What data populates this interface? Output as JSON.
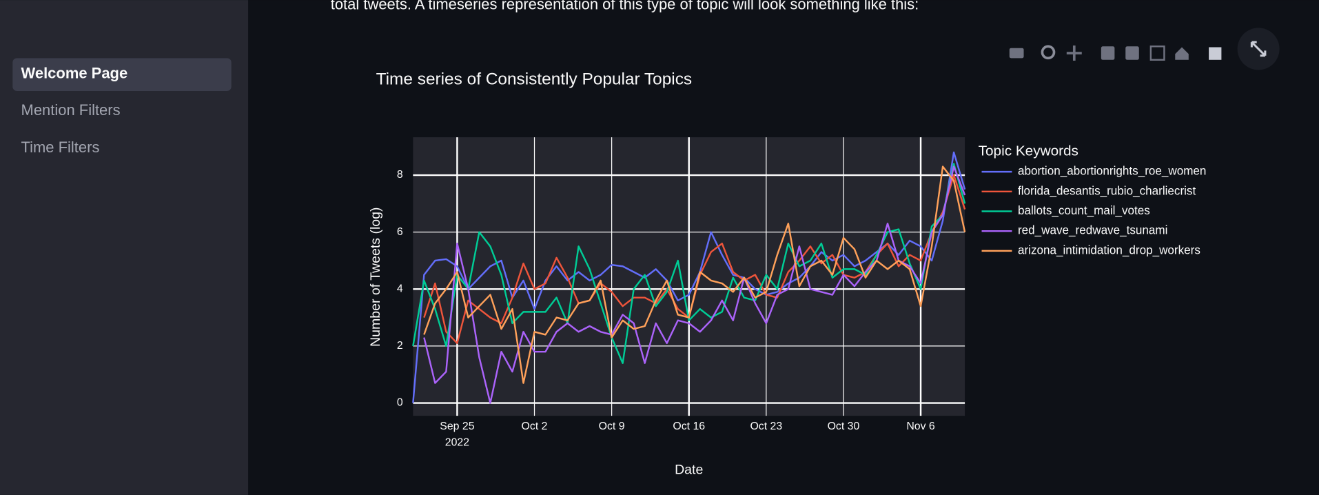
{
  "sidebar": {
    "items": [
      "Welcome Page",
      "Mention Filters",
      "Time Filters"
    ],
    "active": 0
  },
  "intro_text": "total tweets. A timeseries representation of this type of topic will look something like this:",
  "chart_data": {
    "type": "line",
    "title": "Time series of Consistently Popular Topics",
    "x_label": "Date",
    "y_label": "Number of Tweets (log)",
    "legend_title": "Topic Keywords",
    "x": [
      "2022-09-21",
      "2022-09-22",
      "2022-09-23",
      "2022-09-24",
      "2022-09-25",
      "2022-09-26",
      "2022-09-27",
      "2022-09-28",
      "2022-09-29",
      "2022-09-30",
      "2022-10-01",
      "2022-10-02",
      "2022-10-03",
      "2022-10-04",
      "2022-10-05",
      "2022-10-06",
      "2022-10-07",
      "2022-10-08",
      "2022-10-09",
      "2022-10-10",
      "2022-10-11",
      "2022-10-12",
      "2022-10-13",
      "2022-10-14",
      "2022-10-15",
      "2022-10-16",
      "2022-10-17",
      "2022-10-18",
      "2022-10-19",
      "2022-10-20",
      "2022-10-21",
      "2022-10-22",
      "2022-10-23",
      "2022-10-24",
      "2022-10-25",
      "2022-10-26",
      "2022-10-27",
      "2022-10-28",
      "2022-10-29",
      "2022-10-30",
      "2022-10-31",
      "2022-11-01",
      "2022-11-02",
      "2022-11-03",
      "2022-11-04",
      "2022-11-05",
      "2022-11-06",
      "2022-11-07",
      "2022-11-08",
      "2022-11-09",
      "2022-11-10"
    ],
    "series": [
      {
        "name": "abortion_abortionrights_roe_women",
        "color": "#636efa",
        "values": [
          0,
          4.5,
          5.0,
          5.05,
          4.8,
          4.0,
          4.4,
          4.8,
          5.0,
          3.7,
          4.3,
          3.3,
          4.3,
          4.8,
          4.3,
          4.6,
          4.3,
          4.5,
          4.85,
          4.8,
          4.6,
          4.4,
          4.7,
          4.3,
          3.6,
          3.8,
          4.6,
          6.0,
          5.2,
          4.5,
          4.4,
          4.0,
          3.8,
          3.9,
          4.2,
          4.4,
          4.8,
          5.3,
          5.0,
          5.2,
          4.8,
          5.0,
          5.3,
          5.6,
          5.2,
          5.7,
          5.5,
          5.0,
          6.4,
          8.8,
          7.5
        ]
      },
      {
        "name": "florida_desantis_rubio_charliecrist",
        "color": "#ef553b",
        "values": [
          null,
          3.0,
          4.2,
          2.5,
          2.1,
          3.6,
          3.3,
          3.0,
          2.8,
          3.7,
          4.9,
          4.0,
          4.2,
          5.1,
          4.4,
          3.5,
          3.6,
          4.2,
          3.9,
          3.4,
          3.7,
          3.7,
          3.5,
          4.0,
          3.3,
          3.0,
          4.5,
          5.3,
          5.6,
          4.6,
          4.3,
          4.5,
          3.8,
          3.7,
          4.6,
          5.0,
          5.5,
          4.9,
          5.2,
          4.5,
          4.4,
          4.6,
          5.2,
          5.6,
          4.8,
          5.2,
          5.0,
          6.0,
          6.7,
          8.0,
          6.8
        ]
      },
      {
        "name": "ballots_count_mail_votes",
        "color": "#00cc96",
        "values": [
          2.0,
          4.3,
          3.3,
          2.0,
          4.5,
          4.0,
          6.0,
          5.5,
          4.5,
          2.8,
          3.2,
          3.2,
          3.2,
          3.7,
          2.8,
          5.5,
          4.7,
          3.5,
          2.3,
          1.4,
          4.0,
          4.5,
          3.4,
          3.9,
          5.0,
          2.9,
          3.3,
          3.0,
          3.2,
          4.4,
          3.7,
          3.6,
          4.5,
          4.0,
          5.6,
          4.8,
          5.0,
          5.6,
          4.4,
          4.7,
          4.7,
          4.5,
          5.2,
          6.0,
          6.1,
          4.9,
          4.0,
          6.2,
          6.6,
          8.4,
          7.0
        ]
      },
      {
        "name": "red_wave_redwave_tsunami",
        "color": "#ab63fa",
        "values": [
          null,
          2.3,
          0.7,
          1.1,
          5.6,
          4.0,
          1.6,
          0.0,
          1.8,
          1.1,
          2.5,
          1.8,
          1.8,
          2.5,
          2.8,
          2.5,
          2.7,
          2.5,
          2.4,
          3.1,
          2.8,
          1.4,
          2.8,
          2.1,
          2.9,
          2.8,
          2.5,
          2.9,
          3.6,
          2.9,
          4.4,
          3.5,
          2.8,
          3.8,
          4.0,
          5.5,
          4.0,
          3.9,
          3.8,
          4.5,
          4.1,
          4.6,
          5.0,
          6.3,
          5.0,
          4.8,
          4.2,
          6.0,
          6.6,
          8.3,
          7.3
        ]
      },
      {
        "name": "arizona_intimidation_drop_workers",
        "color": "#ffa15a",
        "values": [
          null,
          2.4,
          3.5,
          4.0,
          4.6,
          3.0,
          3.4,
          3.8,
          2.6,
          3.3,
          0.7,
          2.5,
          2.4,
          3.0,
          2.9,
          3.5,
          3.6,
          4.3,
          2.3,
          2.9,
          2.6,
          2.7,
          3.6,
          4.3,
          3.1,
          3.0,
          4.6,
          4.3,
          4.2,
          3.9,
          4.4,
          3.7,
          3.9,
          5.2,
          6.3,
          4.1,
          4.8,
          5.0,
          4.5,
          5.8,
          5.4,
          4.4,
          5.0,
          4.7,
          5.0,
          4.7,
          3.4,
          5.5,
          8.3,
          7.8,
          6.0
        ]
      }
    ],
    "xlim": [
      "2022-09-21",
      "2022-11-10"
    ],
    "xticks": [
      {
        "value": "2022-09-25",
        "label": "Sep 25"
      },
      {
        "value": "2022-10-02",
        "label": "Oct 2"
      },
      {
        "value": "2022-10-09",
        "label": "Oct 9"
      },
      {
        "value": "2022-10-16",
        "label": "Oct 16"
      },
      {
        "value": "2022-10-23",
        "label": "Oct 23"
      },
      {
        "value": "2022-10-30",
        "label": "Oct 30"
      },
      {
        "value": "2022-11-06",
        "label": "Nov 6"
      }
    ],
    "xtick_year": "2022",
    "ylim": [
      -0.45,
      9.33
    ],
    "yticks": [
      0,
      2,
      4,
      6,
      8
    ],
    "grid": true
  }
}
